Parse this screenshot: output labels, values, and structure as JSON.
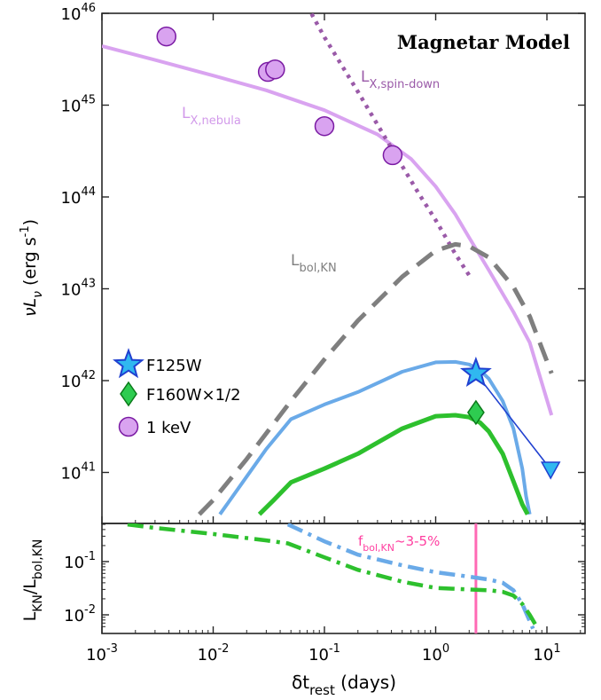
{
  "chart_data": [
    {
      "type": "line",
      "panel": "top",
      "title": "Magnetar Model",
      "xscale": "log",
      "yscale": "log",
      "xlim": [
        0.001,
        20
      ],
      "ylim": [
        3.5e+40,
        1e+46
      ],
      "ylabel_main": "νL",
      "ylabel_sub": "ν",
      "ylabel_units": " (erg s",
      "ylabel_units_sup": "-1",
      "ylabel_units_close": ")",
      "yticks": [
        {
          "value": 1e+41,
          "base": "10",
          "exp": "41"
        },
        {
          "value": 1e+42,
          "base": "10",
          "exp": "42"
        },
        {
          "value": 1e+43,
          "base": "10",
          "exp": "43"
        },
        {
          "value": 1e+44,
          "base": "10",
          "exp": "44"
        },
        {
          "value": 1e+45,
          "base": "10",
          "exp": "45"
        },
        {
          "value": 1e+46,
          "base": "10",
          "exp": "46"
        }
      ],
      "series": [
        {
          "name": "L",
          "sub": "X,nebula",
          "style": "solid",
          "color": "#d9a3f0",
          "x": [
            0.001,
            0.003,
            0.01,
            0.03,
            0.1,
            0.3,
            0.6,
            1,
            1.5,
            2,
            3,
            5,
            7,
            11
          ],
          "y": [
            4.4e+45,
            3.1e+45,
            2.1e+45,
            1.45e+45,
            8.8e+44,
            4.8e+44,
            2.6e+44,
            1.3e+44,
            6.5e+43,
            3.6e+43,
            1.6e+43,
            5.6e+42,
            2.6e+42,
            4.2e+41
          ]
        },
        {
          "name": "L",
          "sub": "X,spin-down",
          "style": "dotted",
          "color": "#9a5aa8",
          "x": [
            0.07,
            0.1,
            0.2,
            0.4,
            0.7,
            1,
            1.5,
            2
          ],
          "y": [
            1.2e+46,
            5.5e+45,
            1.4e+45,
            3.4e+44,
            1.1e+44,
            5.6e+43,
            2.4e+43,
            1.4e+43
          ]
        },
        {
          "name": "L",
          "sub": "bol,KN",
          "style": "dashed",
          "color": "#7f7f7f",
          "x": [
            0.0075,
            0.01,
            0.02,
            0.05,
            0.1,
            0.2,
            0.5,
            1,
            1.5,
            2,
            3,
            5,
            7,
            11
          ],
          "y": [
            3.5e+40,
            5e+40,
            1.4e+41,
            6e+41,
            1.7e+42,
            4.5e+42,
            1.35e+43,
            2.6e+43,
            3.05e+43,
            2.9e+43,
            2.2e+43,
            1.05e+43,
            5e+42,
            1.2e+42
          ]
        },
        {
          "name": "F125W model",
          "style": "solid",
          "color": "#6aaae8",
          "x": [
            0.0115,
            0.02,
            0.03,
            0.05,
            0.1,
            0.2,
            0.5,
            1,
            1.5,
            2,
            2.5,
            3,
            4,
            5,
            6,
            6.5,
            7
          ],
          "y": [
            3.5e+40,
            9e+40,
            1.8e+41,
            3.8e+41,
            5.5e+41,
            7.5e+41,
            1.25e+42,
            1.58e+42,
            1.6e+42,
            1.5e+42,
            1.3e+42,
            1.05e+42,
            6e+41,
            3e+41,
            1.1e+41,
            5.5e+40,
            3.5e+40
          ]
        },
        {
          "name": "F160W model",
          "style": "solid",
          "color": "#2dc02d",
          "x": [
            0.026,
            0.035,
            0.05,
            0.1,
            0.2,
            0.5,
            1,
            1.5,
            2,
            2.5,
            3,
            4,
            5,
            6,
            6.7
          ],
          "y": [
            3.5e+40,
            5e+40,
            7.8e+40,
            1.1e+41,
            1.6e+41,
            3e+41,
            4.1e+41,
            4.2e+41,
            4e+41,
            3.5e+41,
            2.8e+41,
            1.6e+41,
            8e+40,
            4.5e+40,
            3.5e+40
          ]
        }
      ],
      "points": [
        {
          "name": "1 keV",
          "marker": "circle",
          "color": "#d9a3f0",
          "edge": "#7a1aa3",
          "x": [
            0.0038,
            0.031,
            0.036,
            0.1,
            0.41
          ],
          "y": [
            5.6e+45,
            2.3e+45,
            2.45e+45,
            5.9e+44,
            2.85e+44
          ]
        },
        {
          "name": "F125W",
          "marker": "star",
          "color": "#30b8f0",
          "edge": "#2040d0",
          "x": [
            2.3
          ],
          "y": [
            1.2e+42
          ]
        },
        {
          "name": "F160W×1/2",
          "marker": "diamond",
          "color": "#2ecc50",
          "edge": "#0b7a1a",
          "x": [
            2.3
          ],
          "y": [
            4.5e+41
          ]
        },
        {
          "name": "F125W upper limit",
          "marker": "triangle-down",
          "color": "#30b8f0",
          "edge": "#2040d0",
          "x": [
            10.8
          ],
          "y": [
            1.08e+41
          ]
        }
      ],
      "connector": {
        "color": "#2040d0",
        "x": [
          2.3,
          10.8
        ],
        "y": [
          1.2e+42,
          1.08e+41
        ]
      },
      "legend": {
        "placement": "left",
        "entries": [
          {
            "label": "F125W",
            "marker": "star"
          },
          {
            "label": "F160W×1/2",
            "marker": "diamond"
          },
          {
            "label": "1 keV",
            "marker": "circle"
          }
        ]
      }
    },
    {
      "type": "line",
      "panel": "bottom",
      "xscale": "log",
      "yscale": "log",
      "xlim": [
        0.001,
        20
      ],
      "ylim": [
        0.0055,
        0.55
      ],
      "xlabel_pre": "δt",
      "xlabel_sub": "rest",
      "xlabel_post": " (days)",
      "xticks": [
        {
          "value": 0.001,
          "base": "10",
          "exp": "-3"
        },
        {
          "value": 0.01,
          "base": "10",
          "exp": "-2"
        },
        {
          "value": 0.1,
          "base": "10",
          "exp": "-1"
        },
        {
          "value": 1,
          "base": "10",
          "exp": "0"
        },
        {
          "value": 10,
          "base": "10",
          "exp": "1"
        }
      ],
      "yticks": [
        {
          "value": 0.01,
          "base": "10",
          "exp": "-2"
        },
        {
          "value": 0.1,
          "base": "10",
          "exp": "-1"
        }
      ],
      "ylabel_l": "L",
      "ylabel_sub1": "KN",
      "ylabel_slash": "/L",
      "ylabel_sub2": "bol,KN",
      "annotation": {
        "pre": "f",
        "sub": "bol,KN",
        "post": "~3-5%",
        "color": "#ff3fa0"
      },
      "vline": {
        "x": 2.3,
        "color": "#ff69b4"
      },
      "series": [
        {
          "name": "F125W ratio",
          "style": "dashdot",
          "color": "#6aaae8",
          "x": [
            0.047,
            0.1,
            0.2,
            0.5,
            1,
            2,
            3,
            4,
            5,
            6,
            7.5
          ],
          "y": [
            0.5,
            0.24,
            0.135,
            0.085,
            0.063,
            0.052,
            0.046,
            0.04,
            0.029,
            0.016,
            0.0055
          ]
        },
        {
          "name": "F160W ratio",
          "style": "dashdot",
          "color": "#2dc02d",
          "x": [
            0.0017,
            0.003,
            0.01,
            0.03,
            0.047,
            0.1,
            0.2,
            0.5,
            1,
            2,
            3,
            4,
            5,
            6,
            7,
            8.3
          ],
          "y": [
            0.5,
            0.43,
            0.33,
            0.25,
            0.22,
            0.12,
            0.07,
            0.042,
            0.032,
            0.03,
            0.029,
            0.027,
            0.023,
            0.016,
            0.01,
            0.0055
          ]
        }
      ]
    }
  ]
}
